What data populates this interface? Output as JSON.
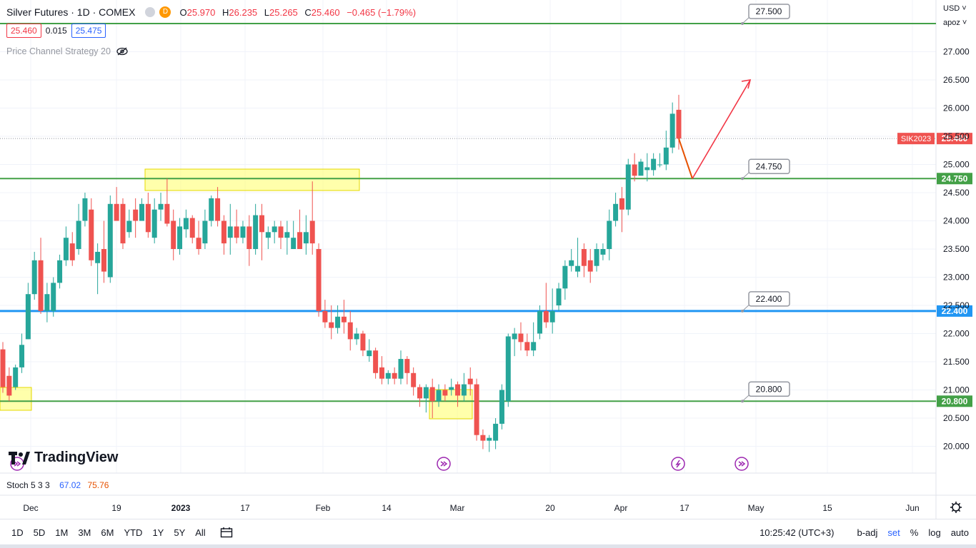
{
  "header": {
    "symbol": "Silver Futures · 1D · COMEX",
    "badge": "D",
    "open_k": "O",
    "open": "25.970",
    "high_k": "H",
    "high": "26.235",
    "low_k": "L",
    "low": "25.265",
    "close_k": "C",
    "close": "25.460",
    "change": "−0.465 (−1.79%)"
  },
  "prices": {
    "bid": "25.460",
    "spread": "0.015",
    "ask": "25.475"
  },
  "strategy_label": "Price Channel Strategy 20",
  "stoch": {
    "label": "Stoch 5 3 3",
    "k": "67.02",
    "d": "75.76"
  },
  "logo_text": "TradingView",
  "top_right": {
    "currency": "USD",
    "mode": "apoz"
  },
  "bottom": {
    "ranges": [
      "1D",
      "5D",
      "1M",
      "3M",
      "6M",
      "YTD",
      "1Y",
      "5Y",
      "All"
    ],
    "time": "10:25:42 (UTC+3)",
    "badj": "b-adj",
    "set": "set",
    "pct": "%",
    "log": "log",
    "auto": "auto"
  },
  "colors": {
    "up": "#26a69a",
    "down": "#ef5350",
    "green_line": "#43a047",
    "blue_line": "#2196f3",
    "accent": "#2962ff"
  },
  "chart_data": {
    "type": "candlestick",
    "ylim": [
      19.6,
      27.8
    ],
    "y_ticks": [
      "27.000",
      "26.500",
      "26.000",
      "25.500",
      "25.000",
      "24.500",
      "24.000",
      "23.500",
      "23.000",
      "22.500",
      "22.000",
      "21.500",
      "21.000",
      "20.500",
      "20.000"
    ],
    "x_ticks": [
      "Dec",
      "19",
      "2023",
      "17",
      "Feb",
      "14",
      "Mar",
      "20",
      "Apr",
      "17",
      "May",
      "15",
      "Jun"
    ],
    "last_price_tag": {
      "symbol": "SIK2023",
      "value": "25.460"
    },
    "levels": [
      {
        "value": 27.5,
        "label": "27.500",
        "color": "green"
      },
      {
        "value": 24.75,
        "label": "24.750",
        "color": "green"
      },
      {
        "value": 22.4,
        "label": "22.400",
        "color": "blue"
      },
      {
        "value": 20.8,
        "label": "20.800",
        "color": "green"
      }
    ],
    "candles": [
      [
        21.72,
        21.05,
        21.85,
        20.95
      ],
      [
        21.25,
        20.9,
        21.4,
        20.8
      ],
      [
        21.05,
        21.4,
        21.45,
        21.0
      ],
      [
        21.4,
        21.8,
        22.0,
        21.3
      ],
      [
        21.9,
        22.7,
        22.9,
        21.9
      ],
      [
        22.7,
        23.3,
        23.45,
        22.6
      ],
      [
        23.3,
        22.4,
        23.7,
        22.35
      ],
      [
        22.4,
        22.7,
        22.9,
        22.2
      ],
      [
        22.4,
        22.9,
        23.0,
        22.3
      ],
      [
        22.9,
        23.3,
        23.4,
        22.8
      ],
      [
        23.3,
        23.7,
        23.9,
        23.2
      ],
      [
        23.6,
        23.3,
        23.8,
        23.2
      ],
      [
        23.5,
        24.0,
        24.3,
        23.4
      ],
      [
        24.0,
        24.4,
        24.5,
        23.9
      ],
      [
        24.2,
        23.3,
        24.4,
        23.2
      ],
      [
        23.25,
        23.45,
        23.6,
        22.7
      ],
      [
        23.5,
        23.1,
        24.0,
        22.9
      ],
      [
        23.0,
        24.3,
        24.45,
        22.9
      ],
      [
        24.3,
        24.0,
        24.6,
        24.0
      ],
      [
        24.3,
        23.6,
        24.4,
        23.5
      ],
      [
        23.8,
        24.0,
        24.2,
        23.7
      ],
      [
        24.2,
        24.0,
        24.4,
        23.7
      ],
      [
        24.0,
        24.3,
        24.4,
        24.0
      ],
      [
        24.3,
        23.8,
        24.5,
        23.7
      ],
      [
        23.7,
        24.2,
        24.4,
        23.6
      ],
      [
        24.2,
        24.3,
        24.5,
        24.0
      ],
      [
        24.3,
        23.95,
        24.75,
        23.9
      ],
      [
        24.0,
        23.5,
        24.2,
        23.3
      ],
      [
        23.5,
        23.9,
        24.05,
        23.4
      ],
      [
        23.85,
        24.05,
        24.2,
        23.7
      ],
      [
        24.05,
        23.7,
        24.1,
        23.6
      ],
      [
        23.7,
        23.5,
        24.0,
        23.4
      ],
      [
        23.6,
        24.0,
        24.2,
        23.5
      ],
      [
        24.0,
        24.4,
        24.45,
        23.9
      ],
      [
        24.4,
        24.0,
        24.6,
        23.9
      ],
      [
        24.0,
        23.6,
        24.1,
        23.4
      ],
      [
        23.7,
        23.9,
        24.3,
        23.4
      ],
      [
        23.9,
        23.7,
        24.2,
        23.6
      ],
      [
        23.7,
        23.9,
        24.0,
        23.6
      ],
      [
        23.9,
        23.5,
        24.1,
        23.2
      ],
      [
        23.5,
        24.1,
        24.3,
        23.4
      ],
      [
        24.1,
        23.8,
        24.3,
        23.3
      ],
      [
        23.7,
        23.8,
        23.9,
        23.5
      ],
      [
        23.8,
        23.9,
        24.0,
        23.6
      ],
      [
        23.9,
        23.7,
        24.0,
        23.5
      ],
      [
        23.7,
        23.8,
        24.0,
        23.4
      ],
      [
        23.5,
        23.7,
        24.0,
        23.5
      ],
      [
        23.8,
        23.5,
        24.2,
        23.5
      ],
      [
        23.6,
        23.8,
        24.1,
        23.4
      ],
      [
        24.0,
        23.6,
        24.7,
        23.4
      ],
      [
        23.5,
        22.4,
        23.6,
        22.3
      ],
      [
        22.4,
        22.2,
        22.6,
        22.1
      ],
      [
        22.2,
        22.1,
        22.5,
        21.9
      ],
      [
        22.1,
        22.3,
        22.5,
        22.0
      ],
      [
        22.3,
        22.2,
        22.6,
        22.0
      ],
      [
        22.2,
        21.9,
        22.4,
        21.7
      ],
      [
        21.9,
        22.0,
        22.1,
        21.8
      ],
      [
        22.0,
        21.7,
        22.05,
        21.6
      ],
      [
        21.6,
        21.7,
        21.9,
        21.5
      ],
      [
        21.7,
        21.3,
        21.75,
        21.2
      ],
      [
        21.4,
        21.2,
        21.6,
        21.1
      ],
      [
        21.2,
        21.3,
        21.35,
        21.1
      ],
      [
        21.3,
        21.2,
        21.4,
        21.1
      ],
      [
        21.2,
        21.55,
        21.7,
        21.1
      ],
      [
        21.55,
        21.3,
        21.6,
        21.1
      ],
      [
        21.3,
        21.05,
        21.4,
        20.9
      ],
      [
        21.05,
        20.85,
        21.1,
        20.7
      ],
      [
        20.85,
        21.05,
        21.1,
        20.6
      ],
      [
        21.05,
        20.8,
        21.2,
        20.5
      ],
      [
        20.8,
        21.0,
        21.1,
        20.7
      ],
      [
        21.0,
        20.9,
        21.1,
        20.8
      ],
      [
        21.0,
        21.05,
        21.2,
        20.9
      ],
      [
        21.1,
        20.9,
        21.15,
        20.7
      ],
      [
        20.9,
        21.1,
        21.3,
        20.8
      ],
      [
        21.2,
        21.1,
        21.4,
        20.9
      ],
      [
        21.1,
        20.2,
        21.2,
        20.1
      ],
      [
        20.2,
        20.1,
        20.3,
        19.95
      ],
      [
        20.1,
        20.15,
        20.2,
        19.9
      ],
      [
        20.1,
        20.4,
        20.5,
        19.95
      ],
      [
        20.4,
        21.0,
        21.1,
        20.3
      ],
      [
        20.8,
        21.95,
        22.0,
        20.7
      ],
      [
        21.9,
        22.0,
        22.1,
        21.6
      ],
      [
        22.0,
        21.85,
        22.2,
        21.7
      ],
      [
        21.85,
        21.7,
        22.0,
        21.6
      ],
      [
        21.7,
        21.85,
        22.2,
        21.6
      ],
      [
        22.0,
        22.4,
        22.5,
        21.9
      ],
      [
        22.4,
        22.2,
        22.9,
        22.1
      ],
      [
        22.2,
        22.4,
        22.8,
        22.0
      ],
      [
        22.5,
        22.8,
        22.9,
        22.4
      ],
      [
        22.8,
        23.2,
        23.3,
        22.6
      ],
      [
        23.2,
        23.3,
        23.5,
        23.1
      ],
      [
        23.1,
        23.2,
        23.7,
        23.0
      ],
      [
        23.5,
        23.2,
        23.6,
        23.0
      ],
      [
        23.3,
        23.1,
        23.5,
        22.9
      ],
      [
        23.2,
        23.5,
        23.6,
        23.1
      ],
      [
        23.4,
        23.5,
        23.6,
        23.3
      ],
      [
        23.5,
        24.0,
        24.2,
        23.3
      ],
      [
        24.0,
        24.3,
        24.5,
        23.9
      ],
      [
        24.4,
        24.2,
        24.6,
        23.8
      ],
      [
        24.2,
        25.0,
        25.1,
        24.1
      ],
      [
        25.0,
        24.8,
        25.2,
        24.7
      ],
      [
        24.8,
        25.05,
        25.1,
        24.9
      ],
      [
        24.9,
        24.95,
        25.2,
        24.7
      ],
      [
        24.9,
        25.1,
        25.2,
        24.8
      ],
      [
        25.0,
        25.0,
        25.2,
        24.95
      ],
      [
        25.0,
        25.3,
        25.6,
        24.9
      ],
      [
        25.3,
        25.9,
        26.1,
        25.2
      ],
      [
        25.97,
        25.46,
        26.235,
        25.265
      ]
    ],
    "projection": [
      [
        25.46
      ],
      [
        24.75
      ],
      [
        26.5
      ]
    ]
  }
}
